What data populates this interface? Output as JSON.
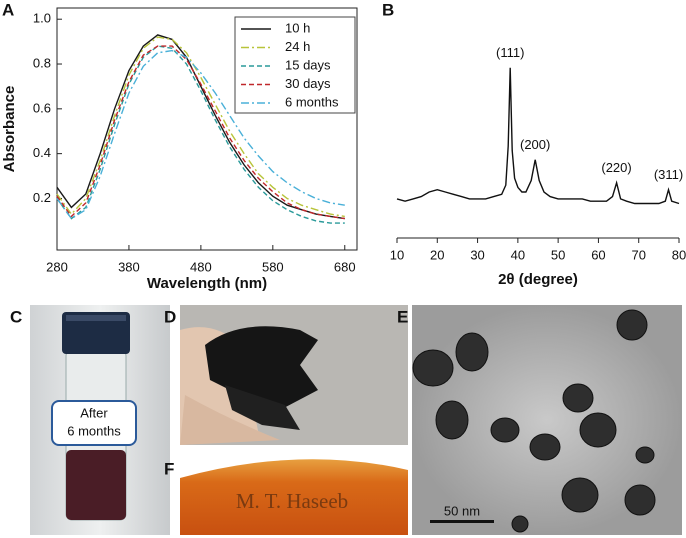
{
  "panels": [
    "A",
    "B",
    "C",
    "D",
    "E",
    "F"
  ],
  "vial_label": [
    "After",
    "6 months"
  ],
  "signature": "M. T. Haseeb",
  "scale_bar": "50 nm",
  "chart_data": [
    {
      "type": "line",
      "xlabel": "Wavelength (nm)",
      "ylabel": "Absorbance",
      "x": [
        280,
        300,
        320,
        340,
        360,
        380,
        400,
        420,
        440,
        460,
        480,
        500,
        520,
        540,
        560,
        580,
        600,
        620,
        640,
        660,
        680
      ],
      "series": [
        {
          "name": "10 h",
          "color": "#1a1a1a",
          "linestyle": "solid",
          "values": [
            0.25,
            0.16,
            0.22,
            0.4,
            0.6,
            0.77,
            0.88,
            0.93,
            0.91,
            0.83,
            0.7,
            0.57,
            0.45,
            0.35,
            0.27,
            0.21,
            0.17,
            0.15,
            0.13,
            0.12,
            0.11
          ]
        },
        {
          "name": "24 h",
          "color": "#b8c43a",
          "linestyle": "dashdot",
          "values": [
            0.22,
            0.13,
            0.2,
            0.37,
            0.57,
            0.75,
            0.87,
            0.92,
            0.91,
            0.85,
            0.74,
            0.62,
            0.5,
            0.4,
            0.31,
            0.25,
            0.2,
            0.17,
            0.15,
            0.13,
            0.12
          ]
        },
        {
          "name": "15 days",
          "color": "#2a9a9a",
          "linestyle": "dashed",
          "values": [
            0.2,
            0.11,
            0.16,
            0.33,
            0.53,
            0.71,
            0.83,
            0.88,
            0.87,
            0.8,
            0.68,
            0.55,
            0.43,
            0.33,
            0.25,
            0.19,
            0.15,
            0.12,
            0.1,
            0.09,
            0.09
          ]
        },
        {
          "name": "30 days",
          "color": "#c0282b",
          "linestyle": "dashed",
          "values": [
            0.21,
            0.12,
            0.18,
            0.35,
            0.55,
            0.72,
            0.84,
            0.88,
            0.88,
            0.82,
            0.71,
            0.59,
            0.47,
            0.37,
            0.29,
            0.23,
            0.18,
            0.15,
            0.13,
            0.12,
            0.11
          ]
        },
        {
          "name": "6 months",
          "color": "#4ab0d8",
          "linestyle": "dashdot",
          "values": [
            0.2,
            0.11,
            0.15,
            0.3,
            0.49,
            0.67,
            0.79,
            0.85,
            0.86,
            0.83,
            0.76,
            0.67,
            0.57,
            0.47,
            0.39,
            0.32,
            0.27,
            0.23,
            0.2,
            0.18,
            0.17
          ]
        }
      ],
      "xlim": [
        280,
        697
      ],
      "ylim": [
        -0.03,
        1.05
      ],
      "xticks": [
        280,
        380,
        480,
        580,
        680
      ],
      "yticks": [
        0.2,
        0.4,
        0.6,
        0.8,
        {
          "value": 1,
          "label": "1.0"
        }
      ],
      "legend": "upper right"
    },
    {
      "type": "line",
      "xlabel": "2θ (degree)",
      "x": [
        10,
        12,
        14,
        16,
        18,
        20,
        22,
        24,
        26,
        28,
        30,
        32,
        34,
        36,
        37,
        37.6,
        38.1,
        38.6,
        39.2,
        40,
        41,
        42,
        43.3,
        44.3,
        45.3,
        46.5,
        48,
        50,
        52,
        54,
        56,
        58,
        60,
        62,
        63.5,
        64.5,
        65.5,
        67,
        69,
        71,
        73,
        75,
        76.6,
        77.4,
        78.2,
        80
      ],
      "series": [
        {
          "color": "#111111",
          "linestyle": "solid",
          "values": [
            17,
            16,
            17,
            18,
            20,
            21,
            20,
            19,
            18,
            17,
            17,
            17,
            18,
            19,
            23,
            40,
            74,
            38,
            26,
            22,
            20,
            20,
            25,
            34,
            25,
            20,
            18,
            17,
            17,
            17,
            17,
            16,
            16,
            16,
            18,
            24,
            17,
            16,
            15,
            15,
            15,
            15,
            16,
            21,
            16,
            15
          ]
        }
      ],
      "xlim": [
        10,
        80
      ],
      "ylim": [
        0,
        100
      ],
      "xticks": [
        10,
        20,
        30,
        40,
        50,
        60,
        70,
        80
      ],
      "annotations": [
        {
          "text": "(111)",
          "x": 38.1
        },
        {
          "text": "(200)",
          "x": 44.3
        },
        {
          "text": "(220)",
          "x": 64.5
        },
        {
          "text": "(311)",
          "x": 77.4
        }
      ]
    }
  ]
}
